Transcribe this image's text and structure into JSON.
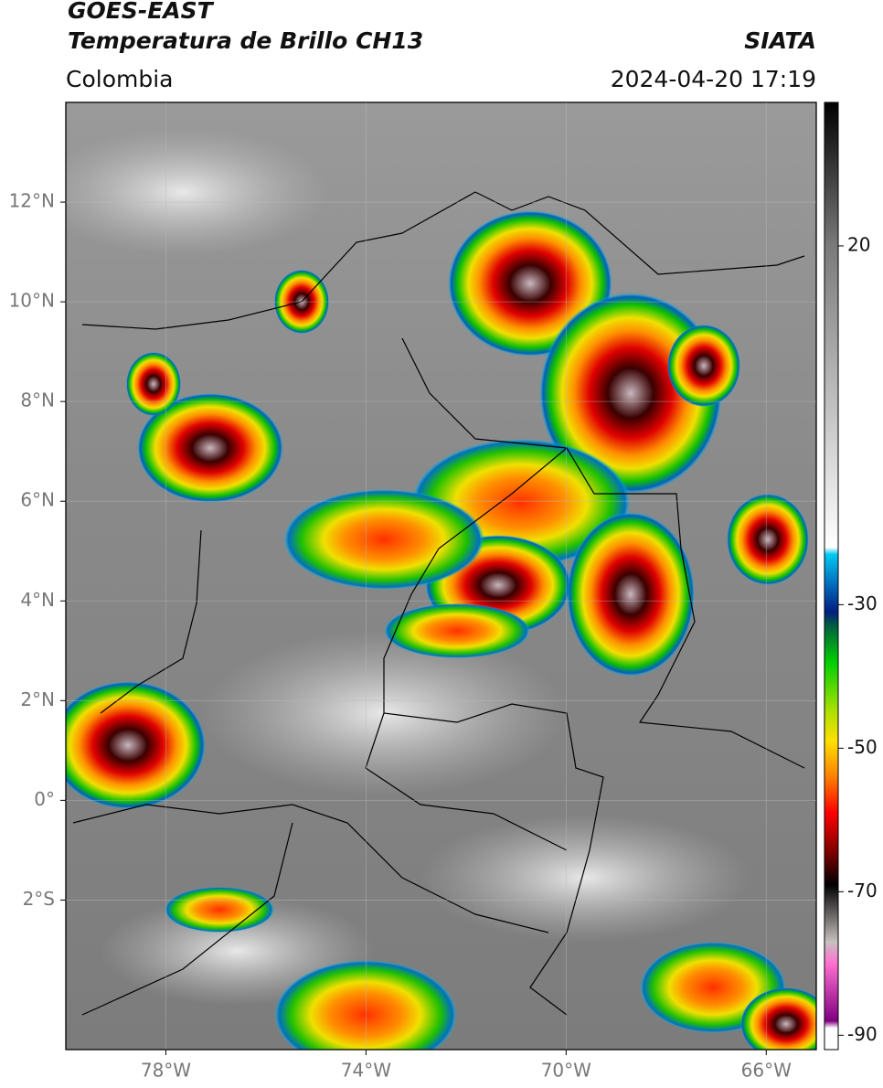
{
  "header": {
    "title": "GOES-EAST",
    "subtitle": "Temperatura de Brillo CH13",
    "source": "SIATA",
    "region": "Colombia",
    "datetime": "2024-04-20 17:19"
  },
  "chart_data": {
    "type": "map",
    "xlim": [
      -80,
      -65
    ],
    "ylim": [
      -5,
      14
    ],
    "xticks": [
      {
        "value": -78,
        "label": "78°W"
      },
      {
        "value": -74,
        "label": "74°W"
      },
      {
        "value": -70,
        "label": "70°W"
      },
      {
        "value": -66,
        "label": "66°W"
      }
    ],
    "yticks": [
      {
        "value": 12,
        "label": "12°N"
      },
      {
        "value": 10,
        "label": "10°N"
      },
      {
        "value": 8,
        "label": "8°N"
      },
      {
        "value": 6,
        "label": "6°N"
      },
      {
        "value": 4,
        "label": "4°N"
      },
      {
        "value": 2,
        "label": "2°N"
      },
      {
        "value": 0,
        "label": "0°"
      },
      {
        "value": -2,
        "label": "2°S"
      }
    ],
    "grid": true,
    "colorbar": {
      "lim": [
        -92,
        40
      ],
      "ticks": [
        20,
        -30,
        -50,
        -70,
        -90
      ],
      "stops": [
        {
          "value": 40,
          "color": "#000000"
        },
        {
          "value": 20,
          "color": "#7a7a7a"
        },
        {
          "value": -22,
          "color": "#ffffff"
        },
        {
          "value": -23,
          "color": "#00c8f0"
        },
        {
          "value": -27,
          "color": "#0070c0"
        },
        {
          "value": -31,
          "color": "#001e80"
        },
        {
          "value": -33,
          "color": "#006040"
        },
        {
          "value": -38,
          "color": "#00d000"
        },
        {
          "value": -45,
          "color": "#b0e000"
        },
        {
          "value": -49,
          "color": "#ffe000"
        },
        {
          "value": -54,
          "color": "#ff8000"
        },
        {
          "value": -59,
          "color": "#ff0000"
        },
        {
          "value": -65,
          "color": "#700000"
        },
        {
          "value": -69,
          "color": "#000000"
        },
        {
          "value": -77,
          "color": "#c8c0c0"
        },
        {
          "value": -80,
          "color": "#ff70d0"
        },
        {
          "value": -88,
          "color": "#800080"
        },
        {
          "value": -89,
          "color": "#ffffff"
        },
        {
          "value": -92,
          "color": "#ffffff"
        }
      ]
    }
  }
}
